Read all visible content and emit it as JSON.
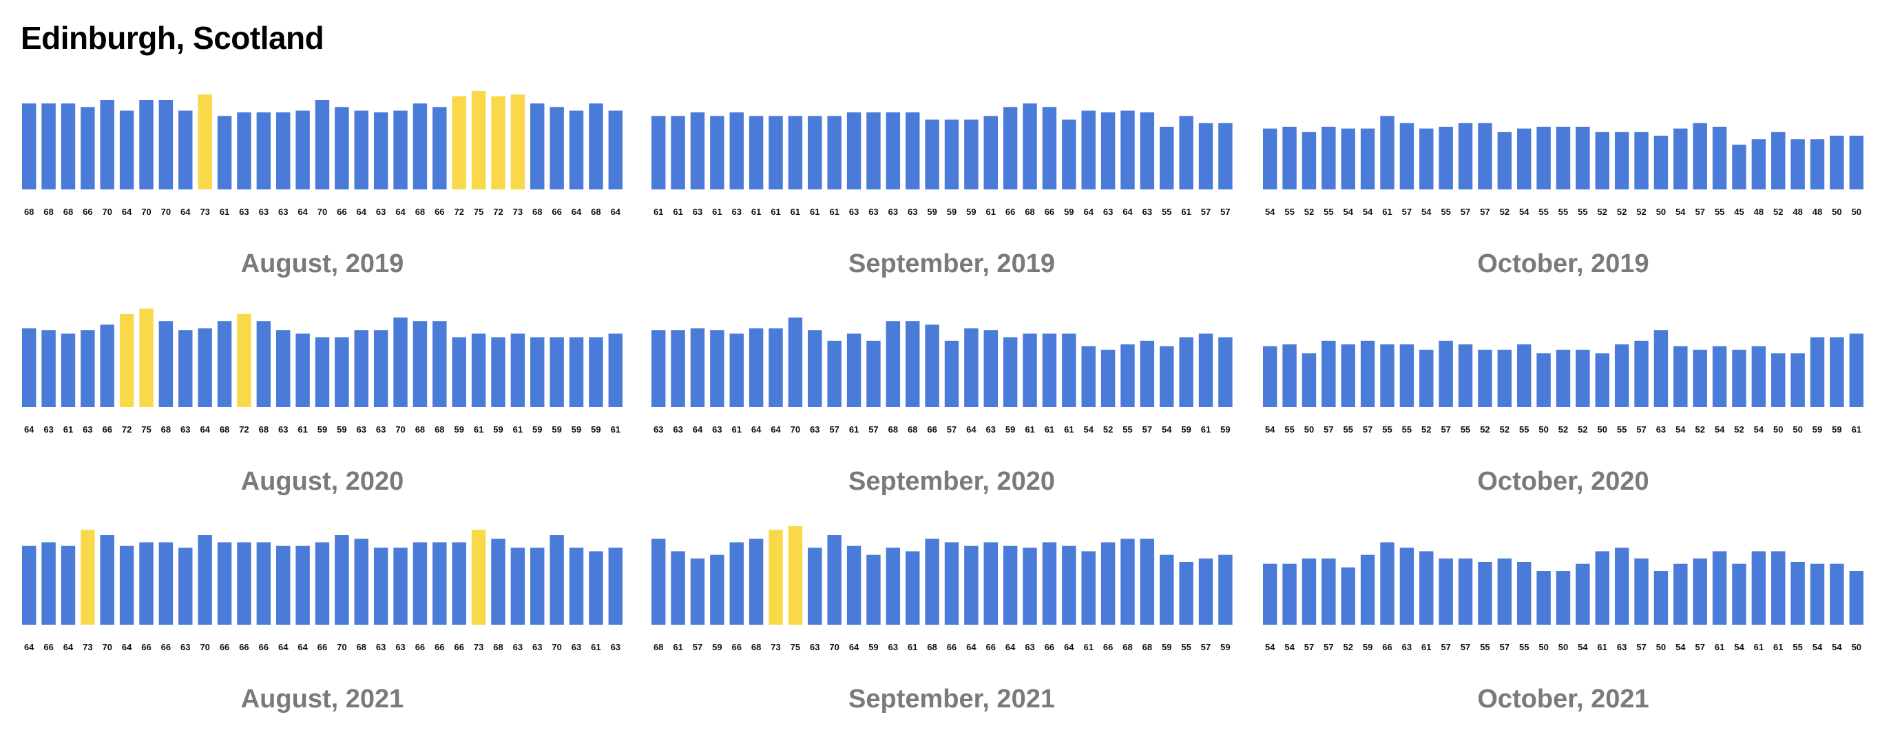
{
  "page": {
    "title": "Edinburgh, Scotland"
  },
  "colors": {
    "normal": "#4a7bd8",
    "highlight": "#f9d849",
    "month_title": "#7a7a7a",
    "label": "#111111"
  },
  "chart_data": [
    {
      "type": "bar",
      "title": "August, 2019",
      "values": [
        68,
        68,
        68,
        66,
        70,
        64,
        70,
        70,
        64,
        73,
        61,
        63,
        63,
        63,
        64,
        70,
        66,
        64,
        63,
        64,
        68,
        66,
        72,
        75,
        72,
        73,
        68,
        66,
        64,
        68,
        64
      ],
      "highlighted_indices": [
        9,
        22,
        23,
        24,
        25
      ]
    },
    {
      "type": "bar",
      "title": "September, 2019",
      "values": [
        61,
        61,
        63,
        61,
        63,
        61,
        61,
        61,
        61,
        61,
        63,
        63,
        63,
        63,
        59,
        59,
        59,
        61,
        66,
        68,
        66,
        59,
        64,
        63,
        64,
        63,
        55,
        61,
        57,
        57
      ],
      "highlighted_indices": []
    },
    {
      "type": "bar",
      "title": "October, 2019",
      "values": [
        54,
        55,
        52,
        55,
        54,
        54,
        61,
        57,
        54,
        55,
        57,
        57,
        52,
        54,
        55,
        55,
        55,
        52,
        52,
        52,
        50,
        54,
        57,
        55,
        45,
        48,
        52,
        48,
        48,
        50,
        50
      ],
      "highlighted_indices": []
    },
    {
      "type": "bar",
      "title": "August, 2020",
      "values": [
        64,
        63,
        61,
        63,
        66,
        72,
        75,
        68,
        63,
        64,
        68,
        72,
        68,
        63,
        61,
        59,
        59,
        63,
        63,
        70,
        68,
        68,
        59,
        61,
        59,
        61,
        59,
        59,
        59,
        59,
        61
      ],
      "highlighted_indices": [
        5,
        6,
        11
      ]
    },
    {
      "type": "bar",
      "title": "September, 2020",
      "values": [
        63,
        63,
        64,
        63,
        61,
        64,
        64,
        70,
        63,
        57,
        61,
        57,
        68,
        68,
        66,
        57,
        64,
        63,
        59,
        61,
        61,
        61,
        54,
        52,
        55,
        57,
        54,
        59,
        61,
        59
      ],
      "highlighted_indices": []
    },
    {
      "type": "bar",
      "title": "October, 2020",
      "values": [
        54,
        55,
        50,
        57,
        55,
        57,
        55,
        55,
        52,
        57,
        55,
        52,
        52,
        55,
        50,
        52,
        52,
        50,
        55,
        57,
        63,
        54,
        52,
        54,
        52,
        54,
        50,
        50,
        59,
        59,
        61
      ],
      "highlighted_indices": []
    },
    {
      "type": "bar",
      "title": "August, 2021",
      "values": [
        64,
        66,
        64,
        73,
        70,
        64,
        66,
        66,
        63,
        70,
        66,
        66,
        66,
        64,
        64,
        66,
        70,
        68,
        63,
        63,
        66,
        66,
        66,
        73,
        68,
        63,
        63,
        70,
        63,
        61,
        63
      ],
      "highlighted_indices": [
        3,
        23
      ]
    },
    {
      "type": "bar",
      "title": "September, 2021",
      "values": [
        68,
        61,
        57,
        59,
        66,
        68,
        73,
        75,
        63,
        70,
        64,
        59,
        63,
        61,
        68,
        66,
        64,
        66,
        64,
        63,
        66,
        64,
        61,
        66,
        68,
        68,
        59,
        55,
        57,
        59
      ],
      "highlighted_indices": [
        6,
        7
      ]
    },
    {
      "type": "bar",
      "title": "October, 2021",
      "values": [
        54,
        54,
        57,
        57,
        52,
        59,
        66,
        63,
        61,
        57,
        57,
        55,
        57,
        55,
        50,
        50,
        54,
        61,
        63,
        57,
        50,
        54,
        57,
        61,
        54,
        61,
        61,
        55,
        54,
        54,
        50
      ],
      "highlighted_indices": []
    }
  ]
}
